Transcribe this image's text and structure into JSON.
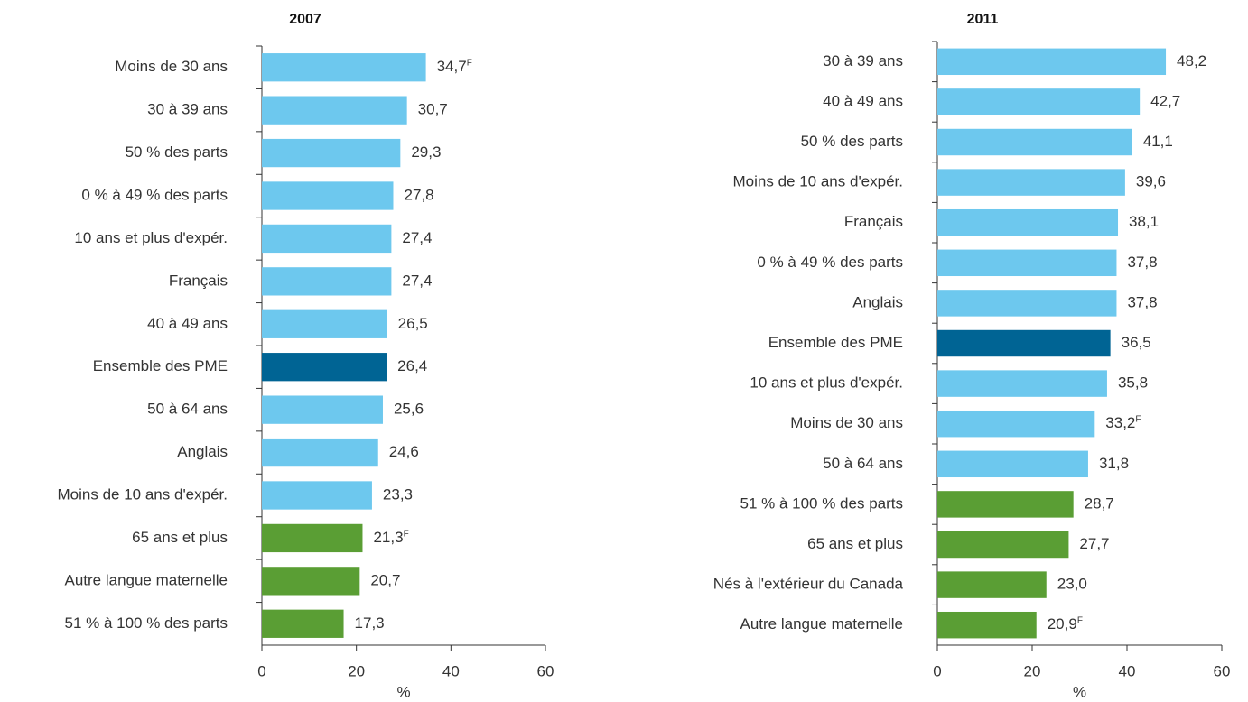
{
  "chart_data": [
    {
      "type": "bar",
      "orientation": "horizontal",
      "title": "2007",
      "xlabel": "%",
      "categories": [
        "Moins de 30 ans",
        "30 à 39 ans",
        "50 % des parts",
        "0 % à 49 % des parts",
        "10 ans et plus d'expér.",
        "Français",
        "40 à 49 ans",
        "Ensemble des PME",
        "50 à 64 ans",
        "Anglais",
        "Moins de 10 ans d'expér.",
        "65 ans et plus",
        "Autre langue maternelle",
        "51 % à 100 % des parts"
      ],
      "values": [
        34.7,
        30.7,
        29.3,
        27.8,
        27.4,
        27.4,
        26.5,
        26.4,
        25.6,
        24.6,
        23.3,
        21.3,
        20.7,
        17.3
      ],
      "value_labels": [
        "34,7",
        "30,7",
        "29,3",
        "27,8",
        "27,4",
        "27,4",
        "26,5",
        "26,4",
        "25,6",
        "24,6",
        "23,3",
        "21,3",
        "20,7",
        "17,3"
      ],
      "value_flags": [
        "F",
        null,
        null,
        null,
        null,
        null,
        null,
        null,
        null,
        null,
        null,
        "F",
        null,
        null
      ],
      "colors": [
        "#6dc8ee",
        "#6dc8ee",
        "#6dc8ee",
        "#6dc8ee",
        "#6dc8ee",
        "#6dc8ee",
        "#6dc8ee",
        "#006494",
        "#6dc8ee",
        "#6dc8ee",
        "#6dc8ee",
        "#5a9e34",
        "#5a9e34",
        "#5a9e34"
      ],
      "xlim": [
        0,
        60
      ],
      "xticks": [
        0,
        20,
        40,
        60
      ]
    },
    {
      "type": "bar",
      "orientation": "horizontal",
      "title": "2011",
      "xlabel": "%",
      "categories": [
        "30 à 39 ans",
        "40 à 49 ans",
        "50 % des parts",
        "Moins de 10 ans d'expér.",
        "Français",
        "0 % à 49 % des parts",
        "Anglais",
        "Ensemble des PME",
        "10 ans et plus d'expér.",
        "Moins de 30 ans",
        "50 à 64 ans",
        "51 % à 100 % des parts",
        "65 ans et plus",
        "Nés à l'extérieur du Canada",
        "Autre langue maternelle"
      ],
      "values": [
        48.2,
        42.7,
        41.1,
        39.6,
        38.1,
        37.8,
        37.8,
        36.5,
        35.8,
        33.2,
        31.8,
        28.7,
        27.7,
        23.0,
        20.9
      ],
      "value_labels": [
        "48,2",
        "42,7",
        "41,1",
        "39,6",
        "38,1",
        "37,8",
        "37,8",
        "36,5",
        "35,8",
        "33,2",
        "31,8",
        "28,7",
        "27,7",
        "23,0",
        "20,9"
      ],
      "value_flags": [
        null,
        null,
        null,
        null,
        null,
        null,
        null,
        null,
        null,
        "F",
        null,
        null,
        null,
        null,
        "F"
      ],
      "colors": [
        "#6dc8ee",
        "#6dc8ee",
        "#6dc8ee",
        "#6dc8ee",
        "#6dc8ee",
        "#6dc8ee",
        "#6dc8ee",
        "#006494",
        "#6dc8ee",
        "#6dc8ee",
        "#6dc8ee",
        "#5a9e34",
        "#5a9e34",
        "#5a9e34",
        "#5a9e34"
      ],
      "xlim": [
        0,
        60
      ],
      "xticks": [
        0,
        20,
        40,
        60
      ]
    }
  ]
}
